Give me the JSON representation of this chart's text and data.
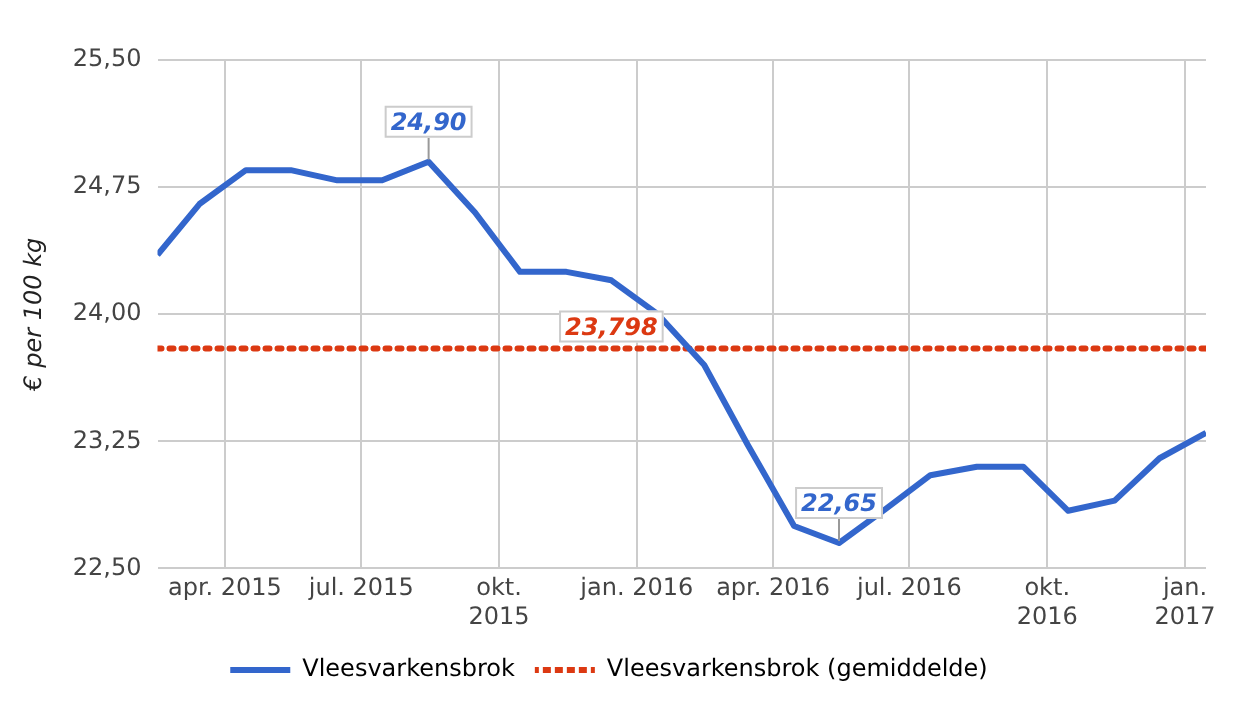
{
  "chart_data": {
    "type": "line",
    "ylabel": "€ per 100 kg",
    "x": [
      "2015-02-15",
      "2015-03-15",
      "2015-04-15",
      "2015-05-15",
      "2015-06-15",
      "2015-07-15",
      "2015-08-15",
      "2015-09-15",
      "2015-10-15",
      "2015-11-15",
      "2015-12-15",
      "2016-01-15",
      "2016-02-15",
      "2016-03-15",
      "2016-04-15",
      "2016-05-15",
      "2016-06-15",
      "2016-07-15",
      "2016-08-15",
      "2016-09-15",
      "2016-10-15",
      "2016-11-15",
      "2016-12-15",
      "2017-01-15"
    ],
    "series": [
      {
        "name": "Vleesvarkensbrok",
        "color": "#3366cc",
        "line_style": "solid",
        "values": [
          24.35,
          24.65,
          24.85,
          24.85,
          24.79,
          24.79,
          24.9,
          24.6,
          24.25,
          24.25,
          24.2,
          24.0,
          23.7,
          23.23,
          22.75,
          22.65,
          22.85,
          23.05,
          23.1,
          23.1,
          22.84,
          22.9,
          23.15,
          23.3
        ],
        "value_labels": [
          null,
          null,
          null,
          null,
          null,
          null,
          "24,90",
          null,
          null,
          null,
          null,
          null,
          null,
          null,
          null,
          "22,65",
          null,
          null,
          null,
          null,
          null,
          null,
          null,
          null
        ]
      },
      {
        "name": "Vleesvarkensbrok (gemiddelde)",
        "color": "#dc3912",
        "line_style": "dotted",
        "values": [
          23.798,
          23.798,
          23.798,
          23.798,
          23.798,
          23.798,
          23.798,
          23.798,
          23.798,
          23.798,
          23.798,
          23.798,
          23.798,
          23.798,
          23.798,
          23.798,
          23.798,
          23.798,
          23.798,
          23.798,
          23.798,
          23.798,
          23.798,
          23.798
        ]
      }
    ],
    "xlim": [
      "2015-02-15",
      "2017-01-15"
    ],
    "xticks": [
      {
        "value": "2015-04-01",
        "label": "apr. 2015"
      },
      {
        "value": "2015-07-01",
        "label": "jul. 2015"
      },
      {
        "value": "2015-10-01",
        "label": "okt.\n2015"
      },
      {
        "value": "2016-01-01",
        "label": "jan. 2016"
      },
      {
        "value": "2016-04-01",
        "label": "apr. 2016"
      },
      {
        "value": "2016-07-01",
        "label": "jul. 2016"
      },
      {
        "value": "2016-10-01",
        "label": "okt.\n2016"
      },
      {
        "value": "2017-01-01",
        "label": "jan.\n2017"
      }
    ],
    "ylim": [
      22.5,
      25.5
    ],
    "yticks": [
      {
        "value": 22.5,
        "label": "22,50"
      },
      {
        "value": 23.25,
        "label": "23,25"
      },
      {
        "value": 24.0,
        "label": "24,00"
      },
      {
        "value": 24.75,
        "label": "24,75"
      },
      {
        "value": 25.5,
        "label": "25,50"
      }
    ],
    "annotations": [
      {
        "text": "23,798",
        "x": "2015-12-15",
        "y": 23.798
      }
    ],
    "grid": true,
    "legend": "bottom",
    "marker": "none"
  }
}
